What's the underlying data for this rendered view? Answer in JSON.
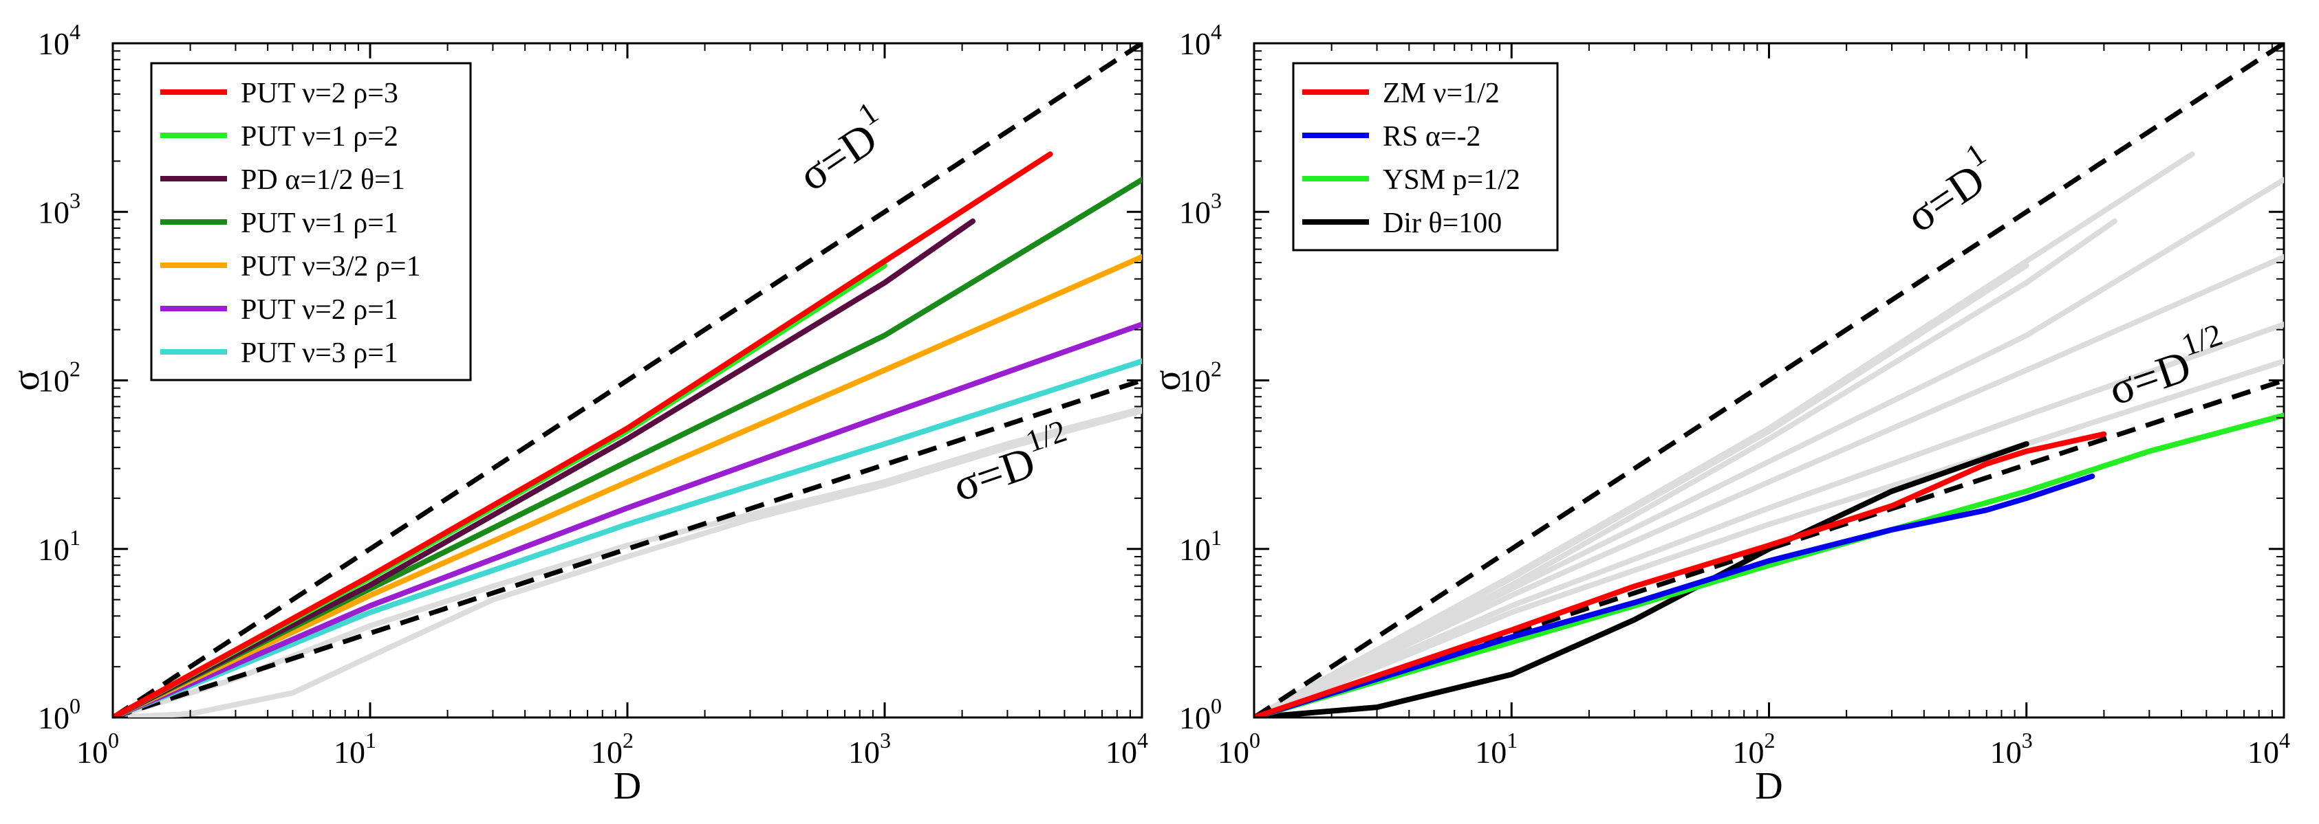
{
  "chart_data": [
    {
      "type": "line",
      "xscale": "log",
      "yscale": "log",
      "xlim": [
        1,
        10000
      ],
      "ylim": [
        1,
        10000
      ],
      "xlabel": "D",
      "ylabel": "σ",
      "xticks": [
        {
          "base": "10",
          "exp": "0"
        },
        {
          "base": "10",
          "exp": "1"
        },
        {
          "base": "10",
          "exp": "2"
        },
        {
          "base": "10",
          "exp": "3"
        },
        {
          "base": "10",
          "exp": "4"
        }
      ],
      "yticks": [
        {
          "base": "10",
          "exp": "0"
        },
        {
          "base": "10",
          "exp": "1"
        },
        {
          "base": "10",
          "exp": "2"
        },
        {
          "base": "10",
          "exp": "3"
        },
        {
          "base": "10",
          "exp": "4"
        }
      ],
      "legend_position": "top-left",
      "reference_lines": [
        {
          "exponent": 1,
          "label_base": "σ=D",
          "label_exp": "1",
          "color": "#000000",
          "dash": true
        },
        {
          "exponent": 0.5,
          "label_base": "σ=D",
          "label_exp": "1/2",
          "color": "#000000",
          "dash": true
        }
      ],
      "background_series": [
        {
          "name": "gray-upper",
          "color": "#dcdcdc",
          "x": [
            1,
            3,
            10,
            30,
            100,
            300,
            1000,
            3000,
            10000
          ],
          "y": [
            1,
            1.7,
            3.5,
            6,
            10.5,
            16,
            25,
            42,
            68
          ]
        },
        {
          "name": "gray-lower",
          "color": "#dcdcdc",
          "x": [
            1,
            2,
            5,
            10,
            30,
            100,
            300,
            1000,
            3000,
            10000
          ],
          "y": [
            1,
            1.05,
            1.4,
            2.3,
            5,
            9,
            15,
            24,
            40,
            66
          ]
        }
      ],
      "series": [
        {
          "name": "PUT ν=2 ρ=3",
          "color": "#ff0000",
          "x": [
            1,
            10,
            100,
            1000,
            4400
          ],
          "y": [
            1,
            6.9,
            52,
            510,
            2200
          ]
        },
        {
          "name": "PUT ν=1 ρ=2",
          "color": "#22ee22",
          "x": [
            1,
            10,
            100,
            1000
          ],
          "y": [
            1,
            6.7,
            50,
            480
          ]
        },
        {
          "name": "PD α=1/2 θ=1",
          "color": "#5a0c40",
          "x": [
            1,
            10,
            100,
            1000,
            2200
          ],
          "y": [
            1,
            6.1,
            45,
            380,
            880
          ]
        },
        {
          "name": "PUT ν=1 ρ=1",
          "color": "#1a8a1a",
          "x": [
            1,
            10,
            100,
            1000,
            10000
          ],
          "y": [
            1,
            5.8,
            33,
            185,
            1550
          ]
        },
        {
          "name": "PUT ν=3/2 ρ=1",
          "color": "#ffa500",
          "x": [
            1,
            10,
            100,
            1000,
            10000
          ],
          "y": [
            1,
            5.3,
            25,
            115,
            540
          ]
        },
        {
          "name": "PUT ν=2 ρ=1",
          "color": "#9a1fd0",
          "x": [
            1,
            10,
            100,
            1000,
            10000
          ],
          "y": [
            1,
            4.6,
            17.5,
            62,
            215
          ]
        },
        {
          "name": "PUT ν=3 ρ=1",
          "color": "#40d8d0",
          "x": [
            1,
            10,
            100,
            1000,
            10000
          ],
          "y": [
            1,
            4.2,
            14,
            42,
            130
          ]
        }
      ]
    },
    {
      "type": "line",
      "xscale": "log",
      "yscale": "log",
      "xlim": [
        1,
        10000
      ],
      "ylim": [
        1,
        10000
      ],
      "xlabel": "D",
      "ylabel": "σ",
      "xticks": [
        {
          "base": "10",
          "exp": "0"
        },
        {
          "base": "10",
          "exp": "1"
        },
        {
          "base": "10",
          "exp": "2"
        },
        {
          "base": "10",
          "exp": "3"
        },
        {
          "base": "10",
          "exp": "4"
        }
      ],
      "yticks": [
        {
          "base": "10",
          "exp": "0"
        },
        {
          "base": "10",
          "exp": "1"
        },
        {
          "base": "10",
          "exp": "2"
        },
        {
          "base": "10",
          "exp": "3"
        },
        {
          "base": "10",
          "exp": "4"
        }
      ],
      "legend_position": "top-left",
      "reference_lines": [
        {
          "exponent": 1,
          "label_base": "σ=D",
          "label_exp": "1",
          "color": "#000000",
          "dash": true
        },
        {
          "exponent": 0.5,
          "label_base": "σ=D",
          "label_exp": "1/2",
          "color": "#000000",
          "dash": true
        }
      ],
      "background_series": [
        {
          "name": "gray-1",
          "color": "#dcdcdc",
          "x": [
            1,
            10,
            100,
            1000,
            4400
          ],
          "y": [
            1,
            6.9,
            52,
            510,
            2200
          ]
        },
        {
          "name": "gray-2",
          "color": "#dcdcdc",
          "x": [
            1,
            10,
            100,
            1000
          ],
          "y": [
            1,
            6.7,
            50,
            480
          ]
        },
        {
          "name": "gray-3",
          "color": "#dcdcdc",
          "x": [
            1,
            10,
            100,
            1000,
            2200
          ],
          "y": [
            1,
            6.1,
            45,
            380,
            880
          ]
        },
        {
          "name": "gray-4",
          "color": "#dcdcdc",
          "x": [
            1,
            10,
            100,
            1000,
            10000
          ],
          "y": [
            1,
            5.8,
            33,
            185,
            1550
          ]
        },
        {
          "name": "gray-5",
          "color": "#dcdcdc",
          "x": [
            1,
            10,
            100,
            1000,
            10000
          ],
          "y": [
            1,
            5.3,
            25,
            115,
            540
          ]
        },
        {
          "name": "gray-6",
          "color": "#dcdcdc",
          "x": [
            1,
            10,
            100,
            1000,
            10000
          ],
          "y": [
            1,
            4.6,
            17.5,
            62,
            215
          ]
        },
        {
          "name": "gray-7",
          "color": "#dcdcdc",
          "x": [
            1,
            10,
            100,
            1000,
            10000
          ],
          "y": [
            1,
            4.2,
            14,
            42,
            130
          ]
        }
      ],
      "series": [
        {
          "name": "ZM ν=1/2",
          "color": "#ff0000",
          "x": [
            1,
            10,
            30,
            100,
            300,
            700,
            1000,
            2000
          ],
          "y": [
            1,
            3.3,
            6,
            10.5,
            18,
            32,
            38,
            48
          ]
        },
        {
          "name": "RS α=-2",
          "color": "#0000ee",
          "x": [
            1,
            10,
            30,
            100,
            300,
            700,
            1000,
            1800
          ],
          "y": [
            1,
            3.0,
            4.8,
            8.5,
            13,
            17,
            20,
            27
          ]
        },
        {
          "name": "YSM p=1/2",
          "color": "#22ee22",
          "x": [
            1,
            10,
            30,
            100,
            300,
            1000,
            3000,
            10000
          ],
          "y": [
            1,
            2.8,
            4.6,
            8,
            13,
            22,
            38,
            62
          ]
        },
        {
          "name": "Dir θ=100",
          "color": "#000000",
          "x": [
            1,
            3,
            10,
            30,
            100,
            300,
            1000
          ],
          "y": [
            1,
            1.15,
            1.8,
            3.8,
            10,
            22,
            42
          ]
        }
      ]
    }
  ]
}
